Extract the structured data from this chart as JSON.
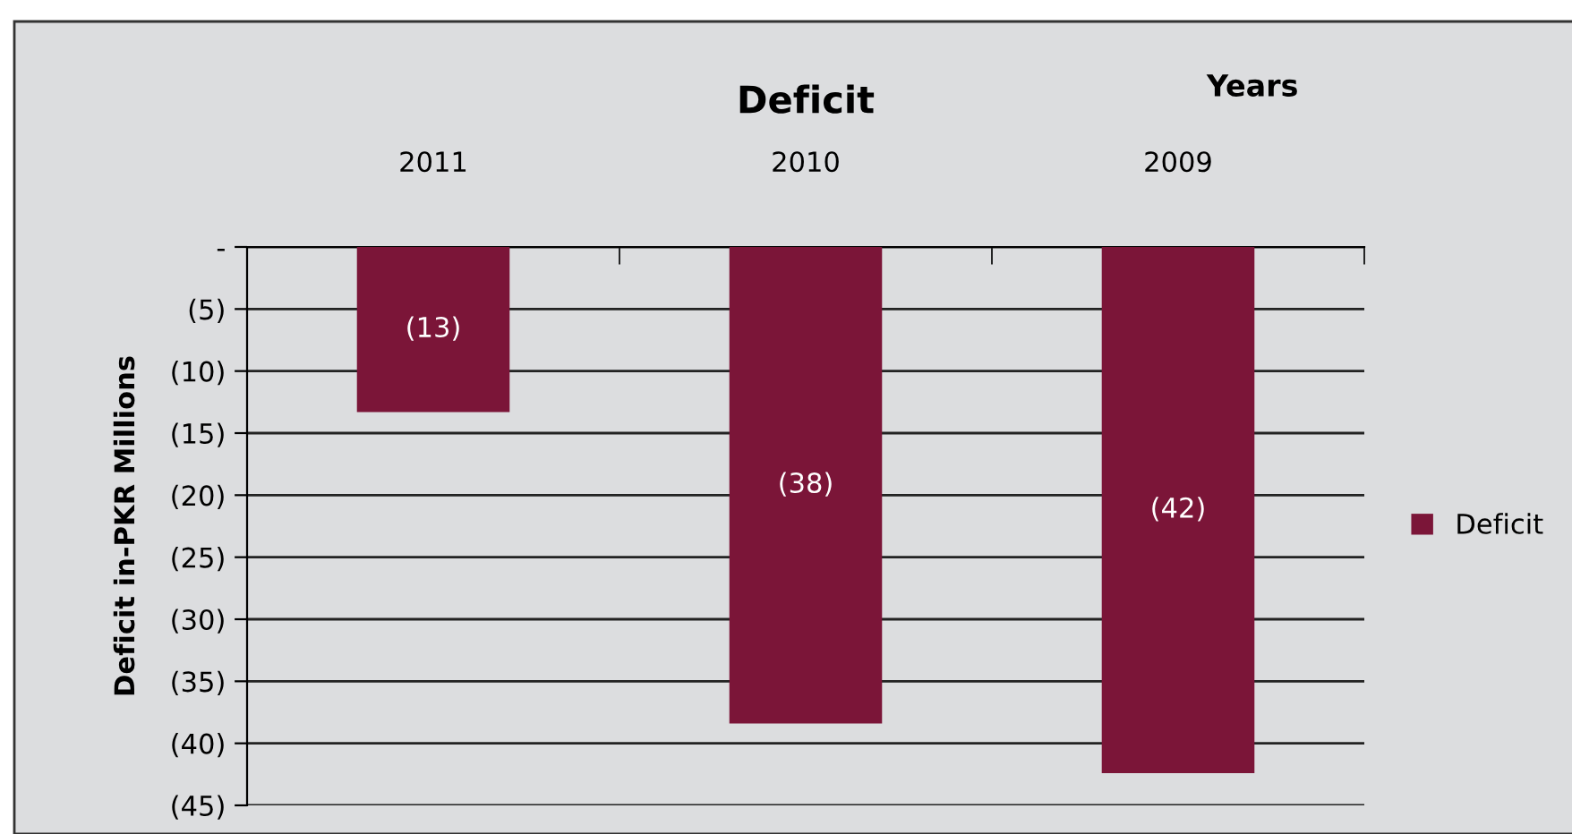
{
  "chart_data": {
    "type": "bar",
    "title": "Deficit",
    "xlabel": "Years",
    "ylabel": "Deficit in-PKR Millions",
    "categories": [
      "2011",
      "2010",
      "2009"
    ],
    "series": [
      {
        "name": "Deficit",
        "color": "#7b1538",
        "values": [
          -13.3,
          -38.4,
          -42.4
        ],
        "value_labels": [
          "(13)",
          "(38)",
          "(42)"
        ]
      }
    ],
    "ylim": [
      -45,
      0
    ],
    "yticks": [
      {
        "value": 0,
        "label": "-"
      },
      {
        "value": -5,
        "label": "(5)"
      },
      {
        "value": -10,
        "label": "(10)"
      },
      {
        "value": -15,
        "label": "(15)"
      },
      {
        "value": -20,
        "label": "(20)"
      },
      {
        "value": -25,
        "label": "(25)"
      },
      {
        "value": -30,
        "label": "(30)"
      },
      {
        "value": -35,
        "label": "(35)"
      },
      {
        "value": -40,
        "label": "(40)"
      },
      {
        "value": -45,
        "label": "(45)"
      }
    ],
    "grid": "y",
    "legend": "right"
  }
}
